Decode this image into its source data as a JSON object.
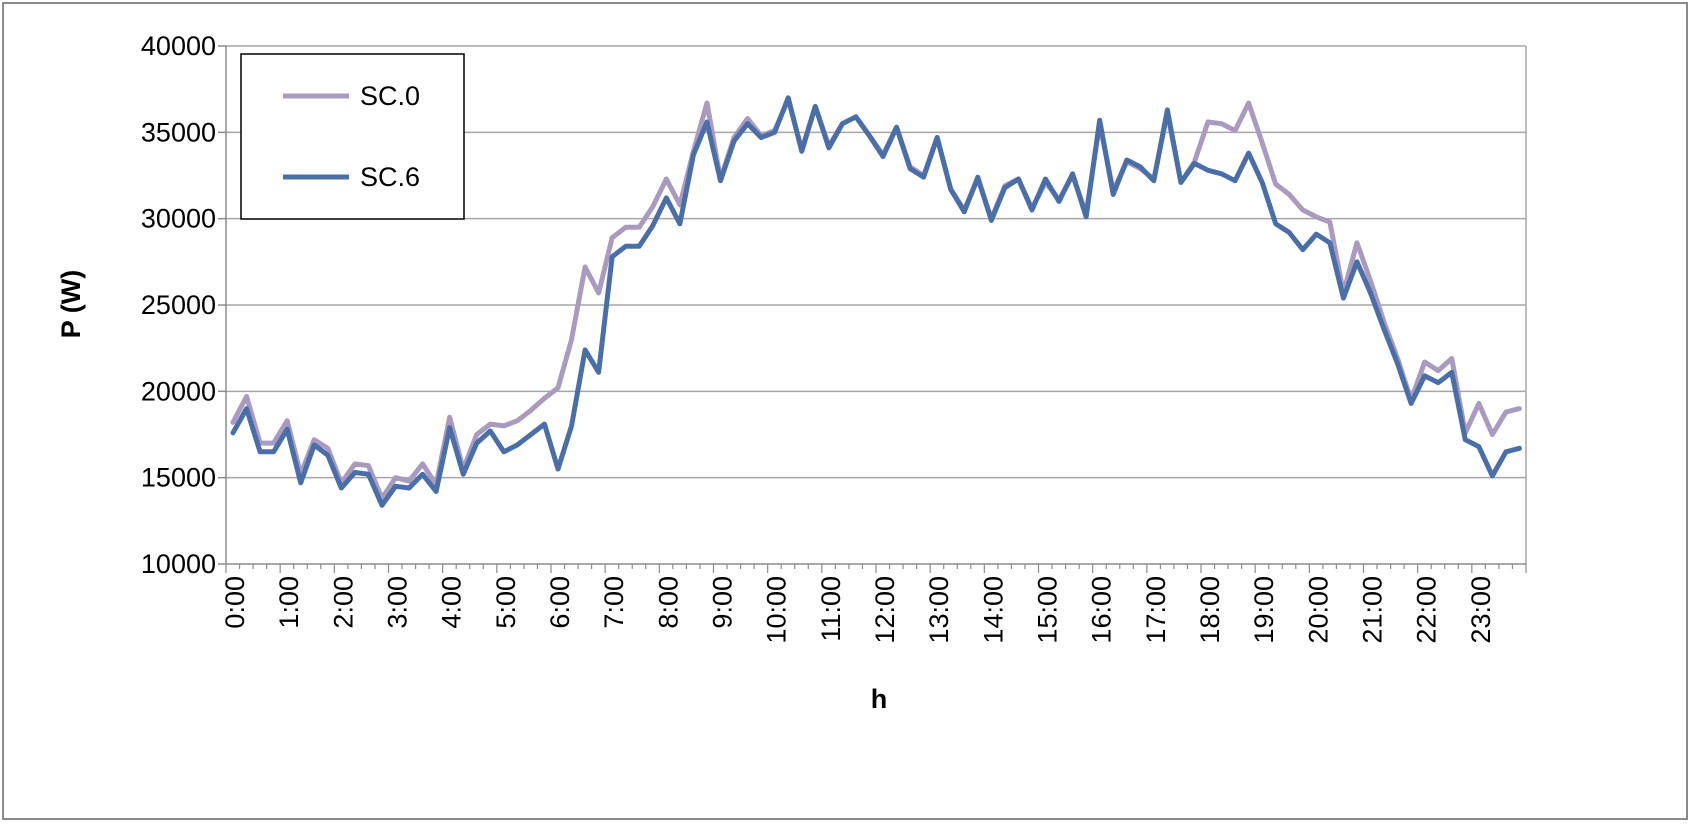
{
  "chart_data": {
    "type": "line",
    "title": "",
    "xlabel": "h",
    "ylabel": "P (W)",
    "ylim": [
      10000,
      40000
    ],
    "y_ticks": [
      10000,
      15000,
      20000,
      25000,
      30000,
      35000,
      40000
    ],
    "grid": "horizontal",
    "legend_position": "top-left",
    "x_tick_labels": [
      "0:00",
      "1:00",
      "2:00",
      "3:00",
      "4:00",
      "5:00",
      "6:00",
      "7:00",
      "8:00",
      "9:00",
      "10:00",
      "11:00",
      "12:00",
      "13:00",
      "14:00",
      "15:00",
      "16:00",
      "17:00",
      "18:00",
      "19:00",
      "20:00",
      "21:00",
      "22:00",
      "23:00"
    ],
    "x_hours": [
      0,
      0.25,
      0.5,
      0.75,
      1,
      1.25,
      1.5,
      1.75,
      2,
      2.25,
      2.5,
      2.75,
      3,
      3.25,
      3.5,
      3.75,
      4,
      4.25,
      4.5,
      4.75,
      5,
      5.25,
      5.5,
      5.75,
      6,
      6.25,
      6.5,
      6.75,
      7,
      7.25,
      7.5,
      7.75,
      8,
      8.25,
      8.5,
      8.75,
      9,
      9.25,
      9.5,
      9.75,
      10,
      10.25,
      10.5,
      10.75,
      11,
      11.25,
      11.5,
      11.75,
      12,
      12.25,
      12.5,
      12.75,
      13,
      13.25,
      13.5,
      13.75,
      14,
      14.25,
      14.5,
      14.75,
      15,
      15.25,
      15.5,
      15.75,
      16,
      16.25,
      16.5,
      16.75,
      17,
      17.25,
      17.5,
      17.75,
      18,
      18.25,
      18.5,
      18.75,
      19,
      19.25,
      19.5,
      19.75,
      20,
      20.25,
      20.5,
      20.75,
      21,
      21.25,
      21.5,
      21.75,
      22,
      22.25,
      22.5,
      22.75,
      23,
      23.25,
      23.5,
      23.75
    ],
    "series": [
      {
        "name": "SC.0",
        "color": "#a99bbf",
        "values": [
          18200,
          19700,
          17000,
          17000,
          18300,
          15200,
          17200,
          16700,
          14700,
          15800,
          15700,
          13800,
          15000,
          14800,
          15800,
          14600,
          18500,
          15500,
          17500,
          18100,
          18000,
          18300,
          18900,
          19600,
          20200,
          23000,
          27200,
          25700,
          28900,
          29500,
          29500,
          30700,
          32300,
          30800,
          33900,
          36700,
          32300,
          34700,
          35800,
          34800,
          35100,
          36900,
          34000,
          36500,
          34200,
          35500,
          35900,
          34800,
          33700,
          35300,
          33000,
          32500,
          34700,
          31700,
          30500,
          32300,
          30000,
          31900,
          32300,
          30600,
          32100,
          31100,
          32500,
          30300,
          35500,
          31600,
          33300,
          32900,
          32300,
          36100,
          32100,
          33300,
          35600,
          35500,
          35100,
          36700,
          34400,
          32000,
          31400,
          30500,
          30100,
          29800,
          25700,
          28600,
          26400,
          24000,
          21900,
          19500,
          21700,
          21200,
          21900,
          17600,
          19300,
          17500,
          18800,
          19000
        ]
      },
      {
        "name": "SC.6",
        "color": "#4a6fa8",
        "values": [
          17600,
          19000,
          16500,
          16500,
          17800,
          14700,
          16900,
          16300,
          14400,
          15300,
          15200,
          13400,
          14500,
          14400,
          15200,
          14200,
          17900,
          15200,
          17000,
          17700,
          16500,
          16900,
          17500,
          18100,
          15500,
          18000,
          22400,
          21100,
          27800,
          28400,
          28400,
          29600,
          31200,
          29700,
          33700,
          35600,
          32200,
          34500,
          35500,
          34700,
          35000,
          37000,
          33900,
          36500,
          34100,
          35500,
          35900,
          34800,
          33600,
          35300,
          32900,
          32400,
          34700,
          31700,
          30400,
          32400,
          29900,
          31800,
          32300,
          30500,
          32300,
          31000,
          32600,
          30100,
          35700,
          31400,
          33400,
          33000,
          32200,
          36300,
          32100,
          33200,
          32800,
          32600,
          32200,
          33800,
          32100,
          29700,
          29200,
          28200,
          29100,
          28600,
          25400,
          27500,
          25700,
          23600,
          21600,
          19300,
          20900,
          20500,
          21100,
          17200,
          16800,
          15100,
          16500,
          16700
        ]
      }
    ]
  }
}
